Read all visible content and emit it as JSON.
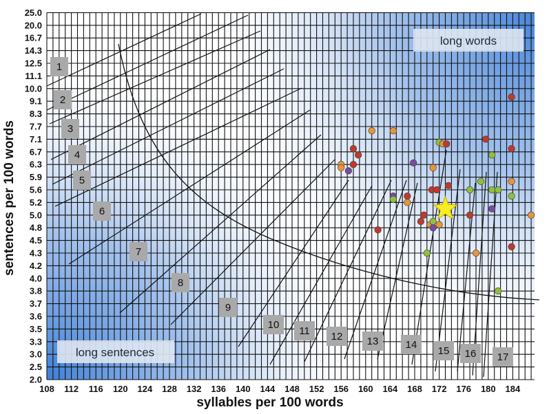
{
  "chart_data": {
    "type": "scatter",
    "title": "",
    "xlabel": "syllables per 100 words",
    "ylabel": "sentences per 100 words",
    "x_ticks": [
      "108",
      "112",
      "116",
      "120",
      "124",
      "128",
      "132",
      "136",
      "140",
      "144",
      "148",
      "152",
      "156",
      "160",
      "164",
      "168",
      "172",
      "176",
      "180",
      "184"
    ],
    "y_ticks": [
      "2.0",
      "2.5",
      "3.0",
      "3.3",
      "3.5",
      "3.6",
      "3.7",
      "3.8",
      "4.0",
      "4.2",
      "4.3",
      "4.5",
      "4.8",
      "5.0",
      "5.2",
      "5.6",
      "5.9",
      "6.3",
      "6.7",
      "7.1",
      "7.7",
      "8.3",
      "9.1",
      "10.0",
      "11.1",
      "12.5",
      "14.3",
      "16.7",
      "20.0",
      "25.0"
    ],
    "xlim": [
      108,
      187
    ],
    "grid": true,
    "region_labels": [
      "long words",
      "long sentences"
    ],
    "grade_labels": [
      "1",
      "2",
      "3",
      "4",
      "5",
      "6",
      "7",
      "8",
      "9",
      "10",
      "11",
      "12",
      "13",
      "14",
      "15",
      "16",
      "17"
    ],
    "points": [
      {
        "x": 156.0,
        "y": 6.3,
        "color": "#e8953a"
      },
      {
        "x": 156.0,
        "y": 6.2,
        "color": "#e8953a"
      },
      {
        "x": 157.2,
        "y": 6.1,
        "color": "#7a4aa0"
      },
      {
        "x": 158.0,
        "y": 6.3,
        "color": "#c0392b"
      },
      {
        "x": 158.0,
        "y": 6.8,
        "color": "#c0392b"
      },
      {
        "x": 158.8,
        "y": 6.6,
        "color": "#c0392b"
      },
      {
        "x": 161.0,
        "y": 7.5,
        "color": "#e8953a"
      },
      {
        "x": 162.0,
        "y": 4.75,
        "color": "#c0392b"
      },
      {
        "x": 164.5,
        "y": 7.5,
        "color": "#e8953a"
      },
      {
        "x": 164.5,
        "y": 5.4,
        "color": "#7a4aa0"
      },
      {
        "x": 164.5,
        "y": 5.3,
        "color": "#8fbf3c"
      },
      {
        "x": 166.8,
        "y": 5.4,
        "color": "#c0392b"
      },
      {
        "x": 166.8,
        "y": 5.2,
        "color": "#e8953a"
      },
      {
        "x": 167.8,
        "y": 6.35,
        "color": "#7a4aa0"
      },
      {
        "x": 169.0,
        "y": 4.9,
        "color": "#c0392b"
      },
      {
        "x": 169.5,
        "y": 5.0,
        "color": "#c0392b"
      },
      {
        "x": 170.0,
        "y": 4.3,
        "color": "#8fbf3c"
      },
      {
        "x": 170.5,
        "y": 4.85,
        "color": "#e8953a"
      },
      {
        "x": 170.8,
        "y": 5.6,
        "color": "#c0392b"
      },
      {
        "x": 171.0,
        "y": 6.2,
        "color": "#e8953a"
      },
      {
        "x": 171.0,
        "y": 4.8,
        "color": "#7a4aa0"
      },
      {
        "x": 171.0,
        "y": 4.9,
        "color": "#8fbf3c"
      },
      {
        "x": 171.6,
        "y": 5.6,
        "color": "#c0392b"
      },
      {
        "x": 172.0,
        "y": 7.0,
        "color": "#8fbf3c"
      },
      {
        "x": 172.0,
        "y": 4.85,
        "color": "#e8953a"
      },
      {
        "x": 172.6,
        "y": 6.95,
        "color": "#e8953a"
      },
      {
        "x": 173.2,
        "y": 6.95,
        "color": "#c0392b"
      },
      {
        "x": 173.5,
        "y": 5.7,
        "color": "#c0392b"
      },
      {
        "x": 177.0,
        "y": 5.6,
        "color": "#8fbf3c"
      },
      {
        "x": 177.0,
        "y": 5.0,
        "color": "#c0392b"
      },
      {
        "x": 178.0,
        "y": 4.3,
        "color": "#e8953a"
      },
      {
        "x": 178.8,
        "y": 5.8,
        "color": "#8fbf3c"
      },
      {
        "x": 179.6,
        "y": 7.1,
        "color": "#c0392b"
      },
      {
        "x": 180.6,
        "y": 6.6,
        "color": "#8fbf3c"
      },
      {
        "x": 180.6,
        "y": 5.6,
        "color": "#8fbf3c"
      },
      {
        "x": 180.6,
        "y": 5.1,
        "color": "#7a4aa0"
      },
      {
        "x": 181.6,
        "y": 5.6,
        "color": "#8fbf3c"
      },
      {
        "x": 181.6,
        "y": 3.8,
        "color": "#8fbf3c"
      },
      {
        "x": 183.8,
        "y": 9.4,
        "color": "#c0392b"
      },
      {
        "x": 183.8,
        "y": 6.8,
        "color": "#c0392b"
      },
      {
        "x": 183.8,
        "y": 5.8,
        "color": "#e8953a"
      },
      {
        "x": 183.8,
        "y": 5.4,
        "color": "#8fbf3c"
      },
      {
        "x": 183.8,
        "y": 4.4,
        "color": "#c0392b"
      },
      {
        "x": 187.0,
        "y": 5.0,
        "color": "#e8953a"
      }
    ],
    "highlight": {
      "x": 173.0,
      "y": 5.1,
      "marker": "star-icon",
      "color": "#f6ee1e"
    },
    "colors": {
      "grid": "#111111",
      "background_gradient_edge": "#3f7fd6",
      "grade_box": "#a9a9a9"
    }
  }
}
